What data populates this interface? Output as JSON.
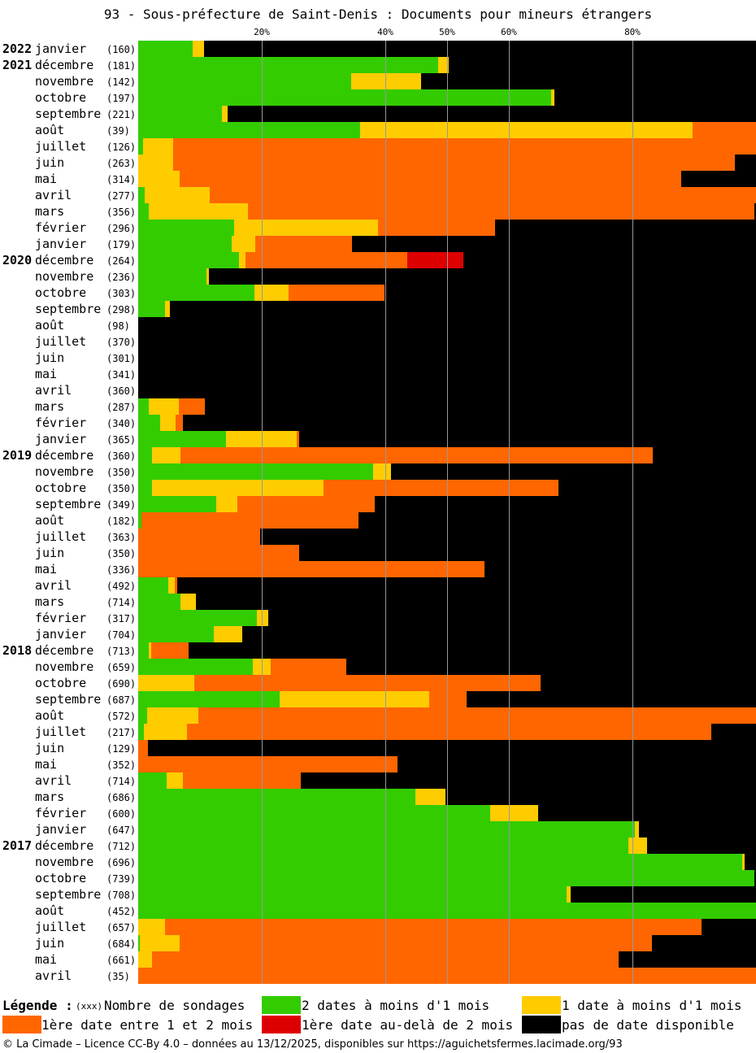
{
  "title": "93 - Sous-préfecture de Saint-Denis : Documents pour mineurs étrangers",
  "legend": {
    "title": "Légende :",
    "count_marker": "(xxx)",
    "count_label": "Nombre de sondages",
    "items": [
      {
        "key": "green",
        "label": "2 dates à moins d'1 mois",
        "color": "#33cc00"
      },
      {
        "key": "yellow",
        "label": "1 date à moins d'1 mois",
        "color": "#ffcc00"
      },
      {
        "key": "orange",
        "label": "1ère date entre 1 et 2 mois",
        "color": "#ff6600"
      },
      {
        "key": "red",
        "label": "1ère date au-delà de 2 mois",
        "color": "#dd0000"
      },
      {
        "key": "black",
        "label": "pas de date disponible",
        "color": "#000000"
      }
    ]
  },
  "footer": "© La Cimade – Licence CC-By 4.0 – données au 13/12/2025, disponibles sur https://aguichetsfermes.lacimade.org/93",
  "chart_data": {
    "type": "bar",
    "orientation": "horizontal",
    "stacked": true,
    "unit": "percent",
    "xlim": [
      0,
      100
    ],
    "x_ticks": [
      {
        "value": 20,
        "label": "20%"
      },
      {
        "value": 40,
        "label": "40%"
      },
      {
        "value": 50,
        "label": "50%"
      },
      {
        "value": 60,
        "label": "60%"
      },
      {
        "value": 80,
        "label": "80%"
      }
    ],
    "grid": true,
    "series_order": [
      "green",
      "yellow",
      "orange",
      "red",
      "black"
    ],
    "rows": [
      {
        "year": "2022",
        "month": "janvier",
        "count": "(160)",
        "green": 8.8,
        "yellow": 1.8,
        "orange": 0,
        "red": 0
      },
      {
        "year": "2021",
        "month": "décembre",
        "count": "(181)",
        "green": 48.6,
        "yellow": 1.7,
        "orange": 0,
        "red": 0
      },
      {
        "year": "",
        "month": "novembre",
        "count": "(142)",
        "green": 34.5,
        "yellow": 11.3,
        "orange": 0,
        "red": 0
      },
      {
        "year": "",
        "month": "octobre",
        "count": "(197)",
        "green": 66.9,
        "yellow": 0.5,
        "orange": 0,
        "red": 0
      },
      {
        "year": "",
        "month": "septembre",
        "count": "(221)",
        "green": 13.6,
        "yellow": 0.9,
        "orange": 0,
        "red": 0
      },
      {
        "year": "",
        "month": "août",
        "count": "(39)",
        "green": 35.9,
        "yellow": 53.8,
        "orange": 10.3,
        "red": 0
      },
      {
        "year": "",
        "month": "juillet",
        "count": "(126)",
        "green": 0.8,
        "yellow": 4.8,
        "orange": 94.4,
        "red": 0
      },
      {
        "year": "",
        "month": "juin",
        "count": "(263)",
        "green": 0,
        "yellow": 5.7,
        "orange": 90.9,
        "red": 0
      },
      {
        "year": "",
        "month": "mai",
        "count": "(314)",
        "green": 0,
        "yellow": 6.7,
        "orange": 81.2,
        "red": 0
      },
      {
        "year": "",
        "month": "avril",
        "count": "(277)",
        "green": 1.1,
        "yellow": 10.5,
        "orange": 88.4,
        "red": 0
      },
      {
        "year": "",
        "month": "mars",
        "count": "(356)",
        "green": 1.7,
        "yellow": 16.0,
        "orange": 82.0,
        "red": 0
      },
      {
        "year": "",
        "month": "février",
        "count": "(296)",
        "green": 15.5,
        "yellow": 23.3,
        "orange": 19.0,
        "red": 0
      },
      {
        "year": "",
        "month": "janvier",
        "count": "(179)",
        "green": 15.1,
        "yellow": 3.9,
        "orange": 15.6,
        "red": 0
      },
      {
        "year": "2020",
        "month": "décembre",
        "count": "(264)",
        "green": 16.3,
        "yellow": 1.1,
        "orange": 26.1,
        "red": 9.1
      },
      {
        "year": "",
        "month": "novembre",
        "count": "(236)",
        "green": 11.0,
        "yellow": 0.4,
        "orange": 0,
        "red": 0
      },
      {
        "year": "",
        "month": "octobre",
        "count": "(303)",
        "green": 18.8,
        "yellow": 5.6,
        "orange": 15.5,
        "red": 0
      },
      {
        "year": "",
        "month": "septembre",
        "count": "(298)",
        "green": 4.4,
        "yellow": 0.7,
        "orange": 0,
        "red": 0
      },
      {
        "year": "",
        "month": "août",
        "count": "(98)",
        "green": 0,
        "yellow": 0,
        "orange": 0,
        "red": 0
      },
      {
        "year": "",
        "month": "juillet",
        "count": "(370)",
        "green": 0,
        "yellow": 0,
        "orange": 0,
        "red": 0
      },
      {
        "year": "",
        "month": "juin",
        "count": "(301)",
        "green": 0,
        "yellow": 0,
        "orange": 0,
        "red": 0
      },
      {
        "year": "",
        "month": "mai",
        "count": "(341)",
        "green": 0,
        "yellow": 0,
        "orange": 0,
        "red": 0
      },
      {
        "year": "",
        "month": "avril",
        "count": "(360)",
        "green": 0,
        "yellow": 0,
        "orange": 0,
        "red": 0
      },
      {
        "year": "",
        "month": "mars",
        "count": "(287)",
        "green": 1.7,
        "yellow": 4.9,
        "orange": 4.2,
        "red": 0
      },
      {
        "year": "",
        "month": "février",
        "count": "(340)",
        "green": 3.5,
        "yellow": 2.6,
        "orange": 1.2,
        "red": 0
      },
      {
        "year": "",
        "month": "janvier",
        "count": "(365)",
        "green": 14.2,
        "yellow": 11.5,
        "orange": 0.3,
        "red": 0
      },
      {
        "year": "2019",
        "month": "décembre",
        "count": "(360)",
        "green": 2.2,
        "yellow": 4.7,
        "orange": 76.4,
        "red": 0
      },
      {
        "year": "",
        "month": "novembre",
        "count": "(350)",
        "green": 38.0,
        "yellow": 2.9,
        "orange": 0,
        "red": 0
      },
      {
        "year": "",
        "month": "octobre",
        "count": "(350)",
        "green": 2.3,
        "yellow": 27.7,
        "orange": 38.0,
        "red": 0
      },
      {
        "year": "",
        "month": "septembre",
        "count": "(349)",
        "green": 12.6,
        "yellow": 3.4,
        "orange": 22.3,
        "red": 0
      },
      {
        "year": "",
        "month": "août",
        "count": "(182)",
        "green": 0.5,
        "yellow": 0,
        "orange": 35.2,
        "red": 0
      },
      {
        "year": "",
        "month": "juillet",
        "count": "(363)",
        "green": 0,
        "yellow": 0,
        "orange": 19.8,
        "red": 0
      },
      {
        "year": "",
        "month": "juin",
        "count": "(350)",
        "green": 0,
        "yellow": 0,
        "orange": 26.0,
        "red": 0
      },
      {
        "year": "",
        "month": "mai",
        "count": "(336)",
        "green": 0,
        "yellow": 0,
        "orange": 56.0,
        "red": 0
      },
      {
        "year": "",
        "month": "avril",
        "count": "(492)",
        "green": 4.9,
        "yellow": 1.0,
        "orange": 0.4,
        "red": 0
      },
      {
        "year": "",
        "month": "mars",
        "count": "(714)",
        "green": 6.9,
        "yellow": 2.4,
        "orange": 0,
        "red": 0
      },
      {
        "year": "",
        "month": "février",
        "count": "(317)",
        "green": 19.2,
        "yellow": 1.9,
        "orange": 0,
        "red": 0
      },
      {
        "year": "",
        "month": "janvier",
        "count": "(704)",
        "green": 12.2,
        "yellow": 4.7,
        "orange": 0,
        "red": 0
      },
      {
        "year": "2018",
        "month": "décembre",
        "count": "(713)",
        "green": 1.7,
        "yellow": 0.4,
        "orange": 6.0,
        "red": 0
      },
      {
        "year": "",
        "month": "novembre",
        "count": "(659)",
        "green": 18.5,
        "yellow": 2.9,
        "orange": 12.3,
        "red": 0
      },
      {
        "year": "",
        "month": "octobre",
        "count": "(690)",
        "green": 0,
        "yellow": 9.1,
        "orange": 56.0,
        "red": 0
      },
      {
        "year": "",
        "month": "septembre",
        "count": "(687)",
        "green": 22.9,
        "yellow": 24.2,
        "orange": 6.0,
        "red": 0
      },
      {
        "year": "",
        "month": "août",
        "count": "(572)",
        "green": 1.4,
        "yellow": 8.4,
        "orange": 90.2,
        "red": 0
      },
      {
        "year": "",
        "month": "juillet",
        "count": "(217)",
        "green": 0.9,
        "yellow": 7.0,
        "orange": 84.8,
        "red": 0
      },
      {
        "year": "",
        "month": "juin",
        "count": "(129)",
        "green": 0,
        "yellow": 0,
        "orange": 1.6,
        "red": 0
      },
      {
        "year": "",
        "month": "mai",
        "count": "(352)",
        "green": 0,
        "yellow": 0,
        "orange": 42.0,
        "red": 0
      },
      {
        "year": "",
        "month": "avril",
        "count": "(714)",
        "green": 4.6,
        "yellow": 2.7,
        "orange": 19.0,
        "red": 0
      },
      {
        "year": "",
        "month": "mars",
        "count": "(686)",
        "green": 44.9,
        "yellow": 4.9,
        "orange": 0,
        "red": 0
      },
      {
        "year": "",
        "month": "février",
        "count": "(600)",
        "green": 57.0,
        "yellow": 7.8,
        "orange": 0,
        "red": 0
      },
      {
        "year": "",
        "month": "janvier",
        "count": "(647)",
        "green": 80.4,
        "yellow": 0.7,
        "orange": 0,
        "red": 0
      },
      {
        "year": "2017",
        "month": "décembre",
        "count": "(712)",
        "green": 79.4,
        "yellow": 3.0,
        "orange": 0,
        "red": 0
      },
      {
        "year": "",
        "month": "novembre",
        "count": "(696)",
        "green": 97.7,
        "yellow": 0.4,
        "orange": 0,
        "red": 0
      },
      {
        "year": "",
        "month": "octobre",
        "count": "(739)",
        "green": 99.7,
        "yellow": 0,
        "orange": 0,
        "red": 0
      },
      {
        "year": "",
        "month": "septembre",
        "count": "(708)",
        "green": 69.4,
        "yellow": 0.6,
        "orange": 0,
        "red": 0
      },
      {
        "year": "",
        "month": "août",
        "count": "(452)",
        "green": 100,
        "yellow": 0,
        "orange": 0,
        "red": 0
      },
      {
        "year": "",
        "month": "juillet",
        "count": "(657)",
        "green": 0,
        "yellow": 4.4,
        "orange": 86.8,
        "red": 0
      },
      {
        "year": "",
        "month": "juin",
        "count": "(684)",
        "green": 0.3,
        "yellow": 6.4,
        "orange": 76.5,
        "red": 0
      },
      {
        "year": "",
        "month": "mai",
        "count": "(661)",
        "green": 0,
        "yellow": 2.2,
        "orange": 75.6,
        "red": 0
      },
      {
        "year": "",
        "month": "avril",
        "count": "(35)",
        "green": 0,
        "yellow": 0,
        "orange": 100,
        "red": 0
      }
    ]
  }
}
